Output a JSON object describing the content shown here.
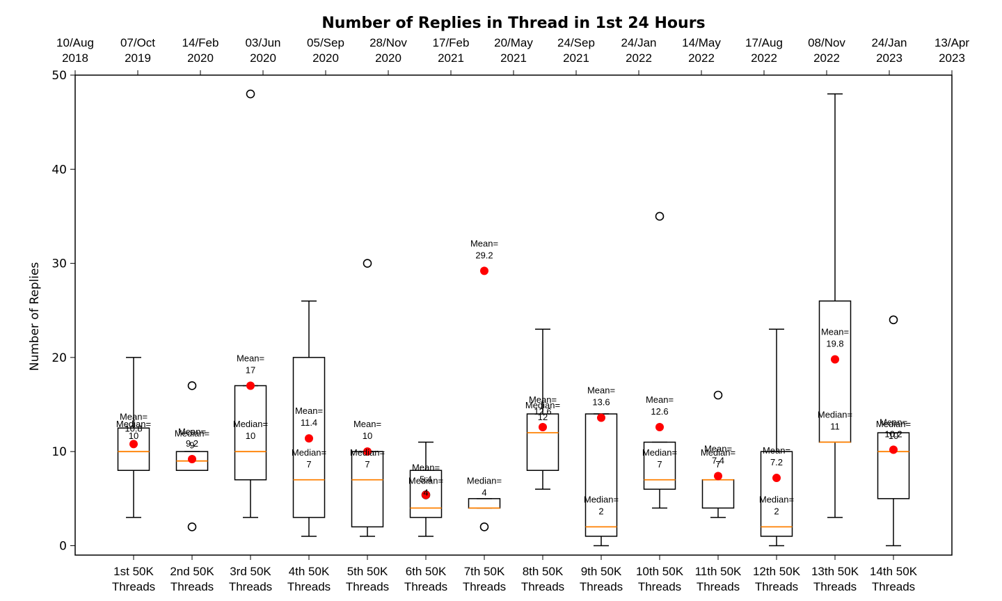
{
  "chart_data": {
    "type": "box",
    "title": "Number of Replies in Thread in 1st 24 Hours",
    "ylabel": "Number of Replies",
    "xlabel": "",
    "ylim": [
      -1,
      50
    ],
    "yticks": [
      0,
      10,
      20,
      30,
      40,
      50
    ],
    "grid": false,
    "colors": {
      "median": "#ff8000",
      "mean": "#ff0000",
      "box": "#000000",
      "outlier": "#000000"
    },
    "categories": [
      [
        "1st 50K",
        "Threads"
      ],
      [
        "2nd 50K",
        "Threads"
      ],
      [
        "3rd 50K",
        "Threads"
      ],
      [
        "4th 50K",
        "Threads"
      ],
      [
        "5th 50K",
        "Threads"
      ],
      [
        "6th 50K",
        "Threads"
      ],
      [
        "7th 50K",
        "Threads"
      ],
      [
        "8th 50K",
        "Threads"
      ],
      [
        "9th 50K",
        "Threads"
      ],
      [
        "10th 50K",
        "Threads"
      ],
      [
        "11th 50K",
        "Threads"
      ],
      [
        "12th 50K",
        "Threads"
      ],
      [
        "13th 50K",
        "Threads"
      ],
      [
        "14th 50K",
        "Threads"
      ]
    ],
    "top_axis_ticks": [
      [
        "10/Aug",
        "2018"
      ],
      [
        "07/Oct",
        "2019"
      ],
      [
        "14/Feb",
        "2020"
      ],
      [
        "03/Jun",
        "2020"
      ],
      [
        "05/Sep",
        "2020"
      ],
      [
        "28/Nov",
        "2020"
      ],
      [
        "17/Feb",
        "2021"
      ],
      [
        "20/May",
        "2021"
      ],
      [
        "24/Sep",
        "2021"
      ],
      [
        "24/Jan",
        "2022"
      ],
      [
        "14/May",
        "2022"
      ],
      [
        "17/Aug",
        "2022"
      ],
      [
        "08/Nov",
        "2022"
      ],
      [
        "24/Jan",
        "2023"
      ],
      [
        "13/Apr",
        "2023"
      ]
    ],
    "mean_label": "Mean=",
    "median_label": "Median=",
    "boxes": [
      {
        "q1": 8,
        "median": 10,
        "q3": 12.5,
        "whisker_low": 3,
        "whisker_high": 20,
        "mean": 10.8,
        "mean_text": "10.8",
        "median_text": "10",
        "outliers": []
      },
      {
        "q1": 8,
        "median": 9,
        "q3": 10,
        "whisker_low": 8,
        "whisker_high": 10,
        "mean": 9.2,
        "mean_text": "9.2",
        "median_text": "9",
        "outliers": [
          17,
          2
        ]
      },
      {
        "q1": 7,
        "median": 10,
        "q3": 17,
        "whisker_low": 3,
        "whisker_high": 17,
        "mean": 17,
        "mean_text": "17",
        "median_text": "10",
        "outliers": [
          48
        ]
      },
      {
        "q1": 3,
        "median": 7,
        "q3": 20,
        "whisker_low": 1,
        "whisker_high": 26,
        "mean": 11.4,
        "mean_text": "11.4",
        "median_text": "7",
        "outliers": []
      },
      {
        "q1": 2,
        "median": 7,
        "q3": 10,
        "whisker_low": 1,
        "whisker_high": 10,
        "mean": 10,
        "mean_text": "10",
        "median_text": "7",
        "outliers": [
          30
        ]
      },
      {
        "q1": 3,
        "median": 4,
        "q3": 8,
        "whisker_low": 1,
        "whisker_high": 11,
        "mean": 5.4,
        "mean_text": "5.4",
        "median_text": "4",
        "outliers": [
          5.4
        ]
      },
      {
        "q1": 4,
        "median": 4,
        "q3": 5,
        "whisker_low": 4,
        "whisker_high": 5,
        "mean": 29.2,
        "mean_text": "29.2",
        "median_text": "4",
        "outliers": [
          2
        ]
      },
      {
        "q1": 8,
        "median": 12,
        "q3": 14,
        "whisker_low": 6,
        "whisker_high": 23,
        "mean": 12.6,
        "mean_text": "12.6",
        "median_text": "12",
        "outliers": []
      },
      {
        "q1": 1,
        "median": 2,
        "q3": 14,
        "whisker_low": 0,
        "whisker_high": 14,
        "mean": 13.6,
        "mean_text": "13.6",
        "median_text": "2",
        "outliers": []
      },
      {
        "q1": 6,
        "median": 7,
        "q3": 11,
        "whisker_low": 4,
        "whisker_high": 11,
        "mean": 12.6,
        "mean_text": "12.6",
        "median_text": "7",
        "outliers": [
          35
        ]
      },
      {
        "q1": 4,
        "median": 7,
        "q3": 7,
        "whisker_low": 3,
        "whisker_high": 7,
        "mean": 7.4,
        "mean_text": "7.4",
        "median_text": "7",
        "outliers": [
          16
        ]
      },
      {
        "q1": 1,
        "median": 2,
        "q3": 10,
        "whisker_low": 0,
        "whisker_high": 23,
        "mean": 7.2,
        "mean_text": "7.2",
        "median_text": "2",
        "outliers": []
      },
      {
        "q1": 11,
        "median": 11,
        "q3": 26,
        "whisker_low": 3,
        "whisker_high": 48,
        "mean": 19.8,
        "mean_text": "19.8",
        "median_text": "11",
        "outliers": []
      },
      {
        "q1": 5,
        "median": 10,
        "q3": 12,
        "whisker_low": 0,
        "whisker_high": 12,
        "mean": 10.2,
        "mean_text": "10.2",
        "median_text": "10",
        "outliers": [
          24
        ]
      }
    ]
  }
}
